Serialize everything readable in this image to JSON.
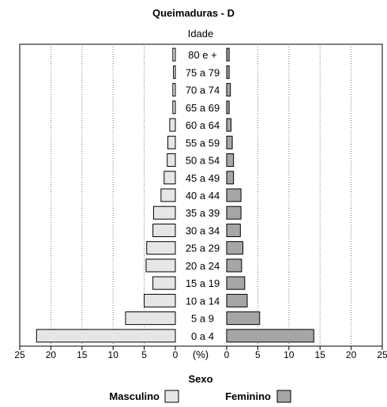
{
  "chart_data": {
    "type": "bar",
    "orientation": "horizontal-population-pyramid",
    "title": "Queimaduras - D",
    "category_axis_label": "Idade",
    "value_axis_label": "(%)",
    "legend_title": "Sexo",
    "categories": [
      "80 e +",
      "75 a 79",
      "70 a 74",
      "65 a 69",
      "60 a 64",
      "55 a 59",
      "50 a 54",
      "45 a 49",
      "40 a 44",
      "35 a 39",
      "30 a 34",
      "25 a 29",
      "20 a 24",
      "15 a 19",
      "10 a 14",
      "5 a 9",
      "0 a 4"
    ],
    "series": [
      {
        "name": "Masculino",
        "color": "#e6e6e6",
        "values": [
          0.4,
          0.3,
          0.4,
          0.4,
          0.9,
          1.2,
          1.3,
          1.8,
          2.3,
          3.5,
          3.6,
          4.6,
          4.7,
          3.6,
          5.0,
          8.0,
          22.3
        ]
      },
      {
        "name": "Feminino",
        "color": "#a6a6a6",
        "values": [
          0.4,
          0.4,
          0.6,
          0.4,
          0.7,
          0.9,
          1.1,
          1.1,
          2.3,
          2.3,
          2.2,
          2.6,
          2.4,
          2.9,
          3.3,
          5.3,
          14.0
        ]
      }
    ],
    "xlim": [
      0,
      25
    ],
    "xticks": [
      "25",
      "20",
      "15",
      "10",
      "5",
      "0",
      "0",
      "5",
      "10",
      "15",
      "20",
      "25"
    ],
    "grid": true,
    "legend_position": "bottom"
  }
}
